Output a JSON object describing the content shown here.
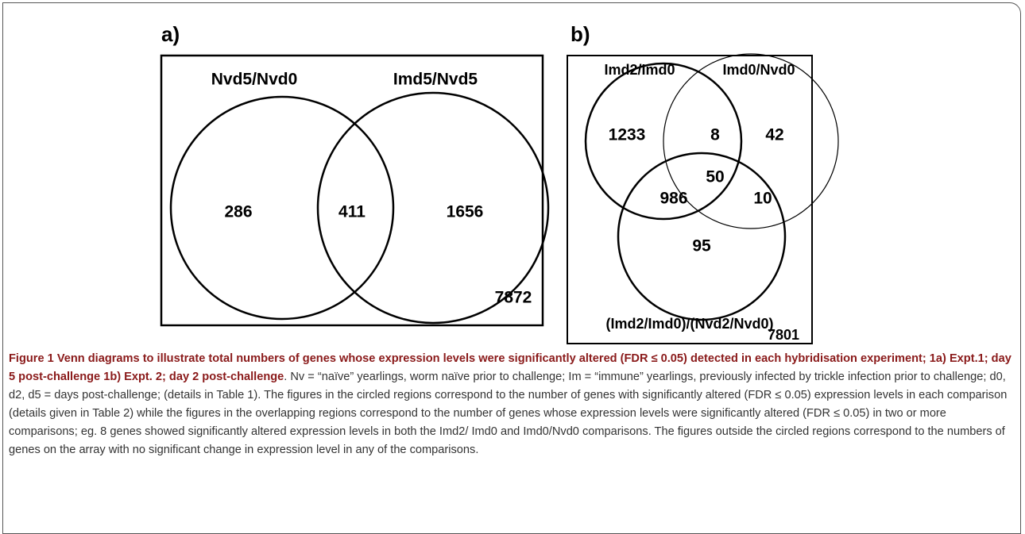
{
  "panels": [
    {
      "label": "a)",
      "sets": [
        "Nvd5/Nvd0",
        "Imd5/Nvd5"
      ],
      "regions": {
        "only_1": 286,
        "both": 411,
        "only_2": 1656,
        "outside": 7872
      }
    },
    {
      "label": "b)",
      "sets": [
        "Imd2/Imd0",
        "Imd0/Nvd0",
        "(Imd2/Imd0)/(Nvd2/Nvd0)"
      ],
      "regions": {
        "only_1": 1233,
        "1_2": 8,
        "only_2": 42,
        "all": 50,
        "1_3": 986,
        "2_3": 10,
        "only_3": 95,
        "outside": 7801
      }
    }
  ],
  "caption": {
    "title": "Figure 1 Venn diagrams to illustrate total numbers of genes whose expression levels were significantly altered (FDR ≤ 0.05) detected in each hybridisation experiment; 1a) Expt.1; day 5 post-challenge 1b) Expt. 2; day 2 post-challenge",
    "text": ". Nv = “naïve” yearlings, worm naïve prior to challenge; Im = “immune” yearlings, previously infected by trickle infection prior to challenge; d0, d2, d5 = days post-challenge; (details in Table 1). The figures in the circled regions correspond to the number of genes with significantly altered (FDR ≤ 0.05) expression levels in each comparison (details given in Table 2) while the figures in the overlapping regions correspond to the number of genes whose expression levels were significantly altered (FDR ≤ 0.05) in two or more comparisons; eg. 8 genes showed significantly altered expression levels in both the Imd2/ Imd0 and Imd0/Nvd0 comparisons. The figures outside the circled regions correspond to the numbers of genes on the array with no significant change in expression level in any of the comparisons."
  }
}
